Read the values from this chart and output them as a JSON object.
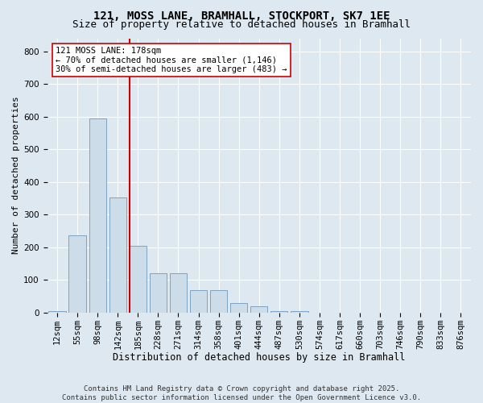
{
  "title": "121, MOSS LANE, BRAMHALL, STOCKPORT, SK7 1EE",
  "subtitle": "Size of property relative to detached houses in Bramhall",
  "xlabel": "Distribution of detached houses by size in Bramhall",
  "ylabel": "Number of detached properties",
  "bar_labels": [
    "12sqm",
    "55sqm",
    "98sqm",
    "142sqm",
    "185sqm",
    "228sqm",
    "271sqm",
    "314sqm",
    "358sqm",
    "401sqm",
    "444sqm",
    "487sqm",
    "530sqm",
    "574sqm",
    "617sqm",
    "660sqm",
    "703sqm",
    "746sqm",
    "790sqm",
    "833sqm",
    "876sqm"
  ],
  "bar_values": [
    5,
    237,
    594,
    352,
    205,
    120,
    120,
    68,
    68,
    30,
    20,
    5,
    5,
    0,
    0,
    0,
    0,
    0,
    0,
    0,
    0
  ],
  "bar_color": "#ccdce8",
  "bar_edge_color": "#7099bb",
  "vline_x_index": 4,
  "vline_color": "#cc0000",
  "annotation_text": "121 MOSS LANE: 178sqm\n← 70% of detached houses are smaller (1,146)\n30% of semi-detached houses are larger (483) →",
  "annotation_box_color": "white",
  "annotation_box_edge_color": "#cc0000",
  "ylim": [
    0,
    840
  ],
  "yticks": [
    0,
    100,
    200,
    300,
    400,
    500,
    600,
    700,
    800
  ],
  "background_color": "#dde8f0",
  "plot_background": "#dde8f0",
  "footer_text": "Contains HM Land Registry data © Crown copyright and database right 2025.\nContains public sector information licensed under the Open Government Licence v3.0.",
  "title_fontsize": 10,
  "subtitle_fontsize": 9,
  "xlabel_fontsize": 8.5,
  "ylabel_fontsize": 8,
  "tick_fontsize": 7.5,
  "annotation_fontsize": 7.5,
  "footer_fontsize": 6.5
}
